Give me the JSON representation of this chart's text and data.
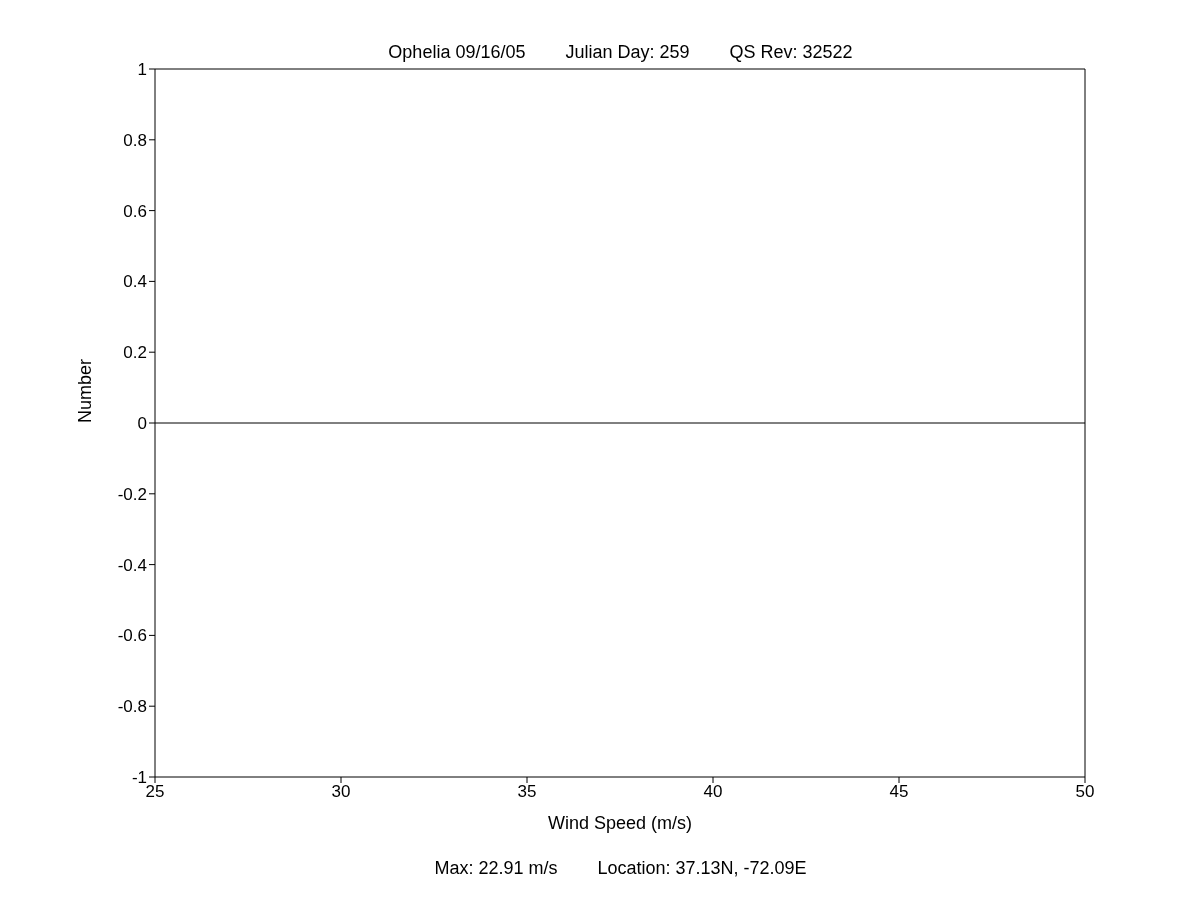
{
  "chart_data": {
    "type": "line",
    "title": "Ophelia 09/16/05        Julian Day: 259        QS Rev: 32522",
    "xlabel": "Wind Speed (m/s)",
    "ylabel": "Number",
    "annotations": [
      "Max: 22.91 m/s        Location: 37.13N, -72.09E"
    ],
    "x": [
      25,
      50
    ],
    "series": [
      {
        "color": "#000000",
        "values": [
          0,
          0
        ]
      }
    ],
    "xlim": [
      25,
      50
    ],
    "xticks": [
      25,
      30,
      35,
      40,
      45,
      50
    ],
    "ylim": [
      -1,
      1
    ],
    "yticks": [
      -1,
      -0.8,
      -0.6,
      -0.4,
      -0.2,
      0,
      0.2,
      0.4,
      0.6,
      0.8,
      1
    ],
    "grid": false,
    "legend": false,
    "marker": "none",
    "line_style": "solid"
  }
}
